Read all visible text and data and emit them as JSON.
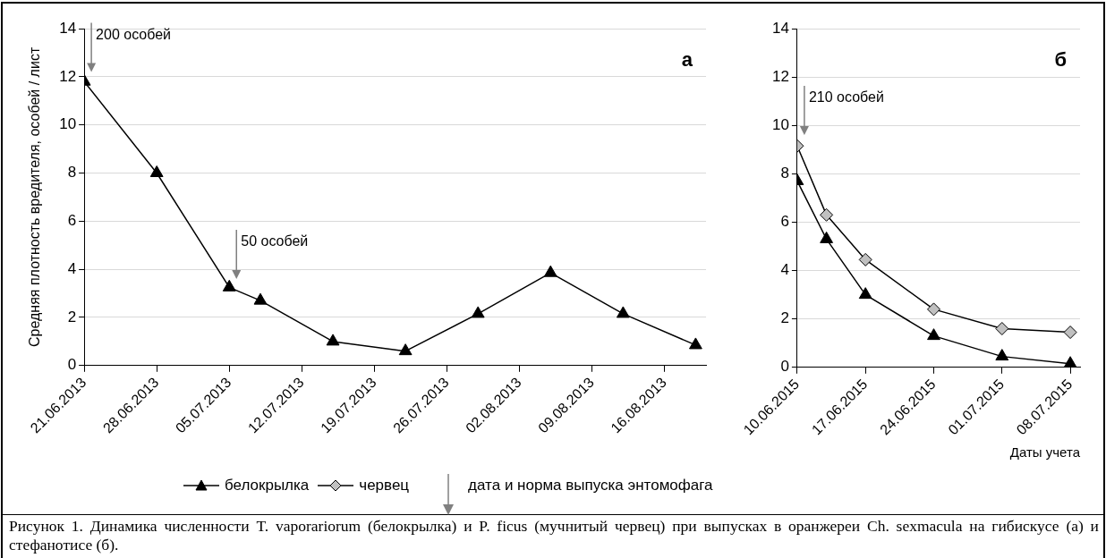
{
  "chart_data": [
    {
      "type": "line",
      "title": "а",
      "ylabel": "Средняя плотность вредителя, особей / лист",
      "x": [
        "2013-06-21",
        "2013-06-28",
        "2013-07-05",
        "2013-07-08",
        "2013-07-15",
        "2013-07-22",
        "2013-07-29",
        "2013-08-05",
        "2013-08-12",
        "2013-08-19"
      ],
      "series": [
        {
          "color": "#000000",
          "marker": "triangle",
          "values": [
            11.8,
            8.0,
            3.25,
            2.7,
            1.0,
            0.6,
            2.15,
            3.85,
            2.15,
            0.85
          ]
        }
      ],
      "xlim": [
        "2013-06-21",
        "2013-08-20"
      ],
      "xticks": [
        {
          "value": "2013-06-21",
          "label": "21.06.2013"
        },
        {
          "value": "2013-06-28",
          "label": "28.06.2013"
        },
        {
          "value": "2013-07-05",
          "label": "05.07.2013"
        },
        {
          "value": "2013-07-12",
          "label": "12.07.2013"
        },
        {
          "value": "2013-07-19",
          "label": "19.07.2013"
        },
        {
          "value": "2013-07-26",
          "label": "26.07.2013"
        },
        {
          "value": "2013-08-02",
          "label": "02.08.2013"
        },
        {
          "value": "2013-08-09",
          "label": "09.08.2013"
        },
        {
          "value": "2013-08-16",
          "label": "16.08.2013"
        }
      ],
      "ylim": [
        0,
        14
      ],
      "yticks": [
        0,
        2,
        4,
        6,
        8,
        10,
        12,
        14
      ],
      "grid": "y",
      "annotations": [
        {
          "text": "200 особей",
          "x": "2013-06-21",
          "y": 12.2
        },
        {
          "text": "50 особей",
          "x": "2013-07-05",
          "y": 3.6
        }
      ]
    },
    {
      "type": "line",
      "title": "б",
      "xlabel": "Даты учета",
      "x": [
        "2015-06-10",
        "2015-06-13",
        "2015-06-17",
        "2015-06-24",
        "2015-07-01",
        "2015-07-08"
      ],
      "series": [
        {
          "name": "белокрылка",
          "color": "#000000",
          "marker": "triangle",
          "values": [
            7.7,
            5.3,
            3.0,
            1.3,
            0.45,
            0.15
          ]
        },
        {
          "name": "червец",
          "color": "#c0c0c0",
          "marker": "diamond",
          "values": [
            9.15,
            6.3,
            4.45,
            2.4,
            1.6,
            1.45
          ]
        }
      ],
      "xlim": [
        "2015-06-10",
        "2015-07-09"
      ],
      "xticks": [
        {
          "value": "2015-06-10",
          "label": "10.06.2015"
        },
        {
          "value": "2015-06-17",
          "label": "17.06.2015"
        },
        {
          "value": "2015-06-24",
          "label": "24.06.2015"
        },
        {
          "value": "2015-07-01",
          "label": "01.07.2015"
        },
        {
          "value": "2015-07-08",
          "label": "08.07.2015"
        }
      ],
      "ylim": [
        0,
        14
      ],
      "yticks": [
        0,
        2,
        4,
        6,
        8,
        10,
        12,
        14
      ],
      "grid": "y",
      "legend": "bottom",
      "annotations": [
        {
          "text": "210 особей",
          "x": "2015-06-10",
          "y": 9.6
        },
        "дата и норма выпуска энтомофага",
        "Рисунок 1. Динамика численности T. vaporariorum (белокрылка) и P. ficus (мучнитый червец) при выпусках в оранжереи Ch. sexmacula на гибискусе (а) и стефанотисе (б)."
      ]
    }
  ]
}
